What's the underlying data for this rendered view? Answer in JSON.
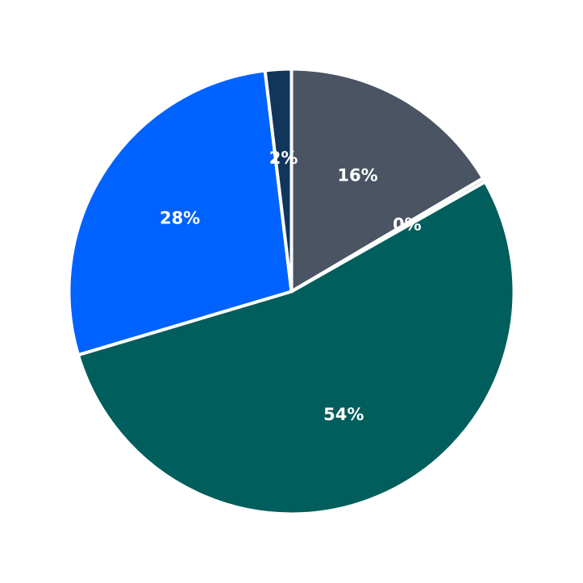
{
  "chart_data": {
    "type": "pie",
    "title": "",
    "start_angle_deg": 90,
    "direction": "clockwise",
    "slices": [
      {
        "value": 16.5,
        "label": "16%",
        "color": "#4a5463"
      },
      {
        "value": 0.3,
        "label": "0%",
        "color": "#d0d4da"
      },
      {
        "value": 53.6,
        "label": "54%",
        "color": "#005e5d"
      },
      {
        "value": 27.7,
        "label": "28%",
        "color": "#0062ff"
      },
      {
        "value": 1.9,
        "label": "2%",
        "color": "#12355b"
      }
    ]
  }
}
